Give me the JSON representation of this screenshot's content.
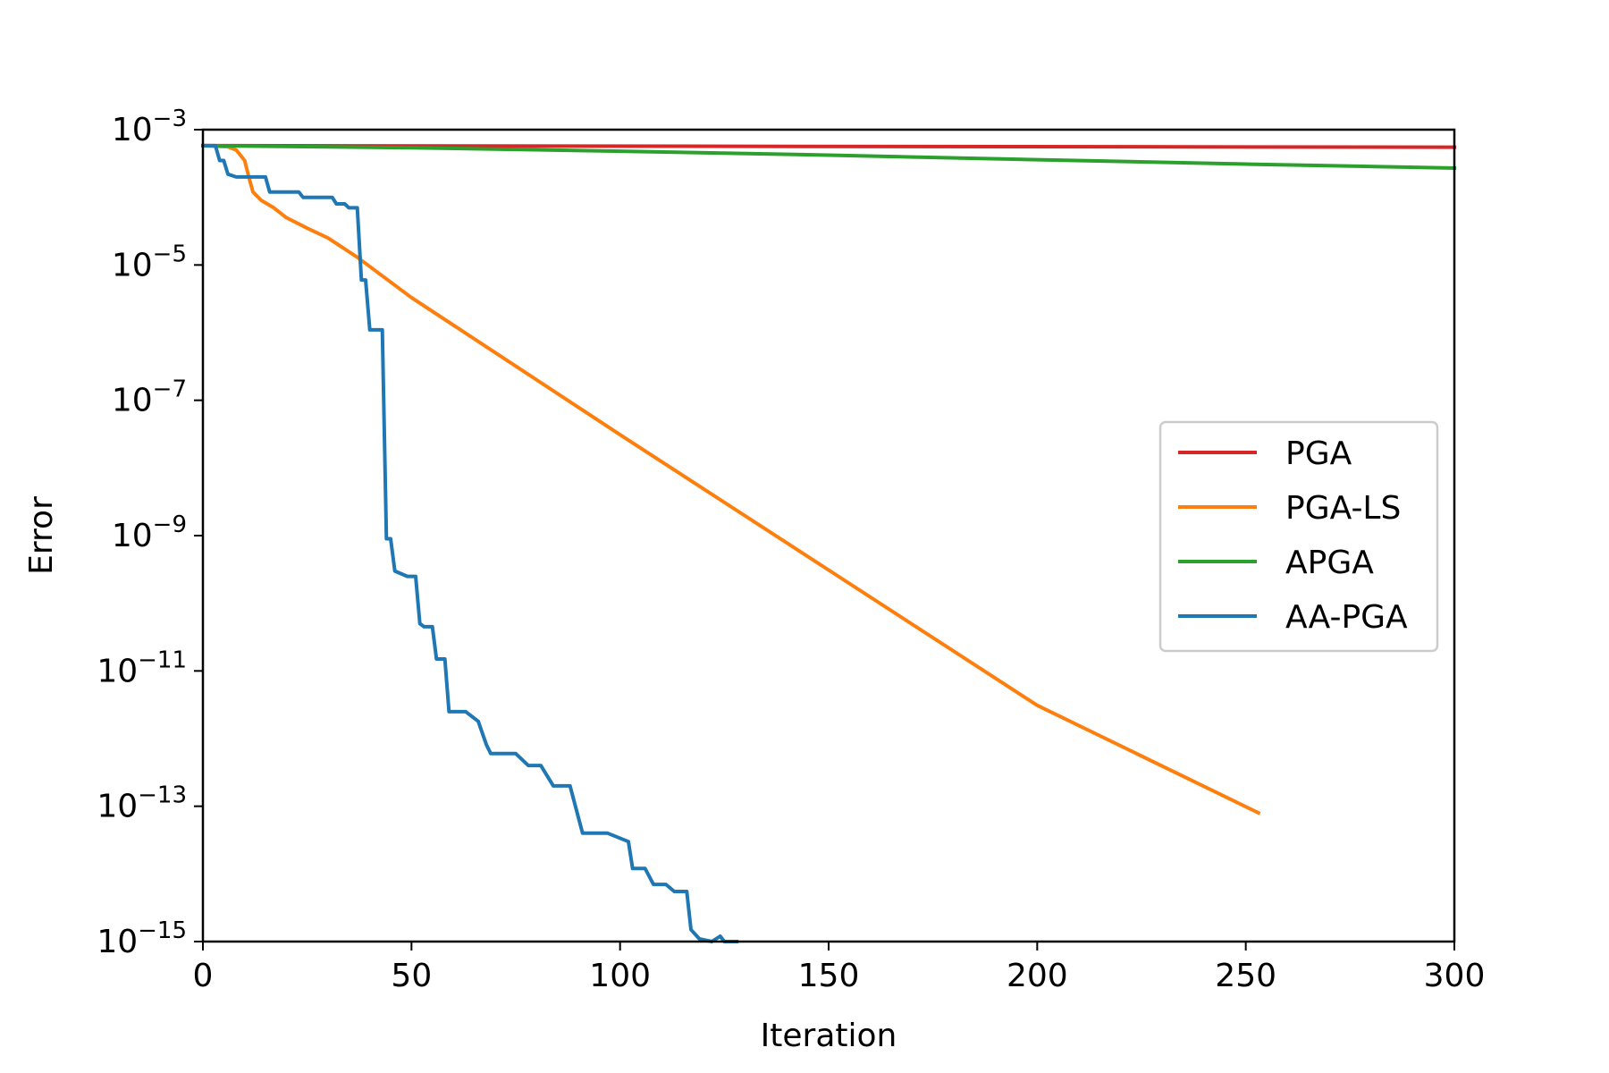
{
  "chart_data": {
    "type": "line",
    "title": "",
    "xlabel": "Iteration",
    "ylabel": "Error",
    "xlim": [
      0,
      300
    ],
    "ylim": [
      1e-15,
      0.001
    ],
    "yscale": "log",
    "grid": false,
    "legend_position": "center-right",
    "x_ticks": [
      0,
      50,
      100,
      150,
      200,
      250,
      300
    ],
    "y_ticks": [
      {
        "value": 0.001,
        "base": "10",
        "exp": "−3"
      },
      {
        "value": 1e-05,
        "base": "10",
        "exp": "−5"
      },
      {
        "value": 1e-07,
        "base": "10",
        "exp": "−7"
      },
      {
        "value": 1e-09,
        "base": "10",
        "exp": "−9"
      },
      {
        "value": 1e-11,
        "base": "10",
        "exp": "−11"
      },
      {
        "value": 1e-13,
        "base": "10",
        "exp": "−13"
      },
      {
        "value": 1e-15,
        "base": "10",
        "exp": "−15"
      }
    ],
    "series": [
      {
        "name": "PGA",
        "color": "#d62728",
        "points": [
          [
            0,
            0.00058
          ],
          [
            300,
            0.00055
          ]
        ]
      },
      {
        "name": "PGA-LS",
        "color": "#ff7f0e",
        "points": [
          [
            0,
            0.00058
          ],
          [
            6,
            0.00056
          ],
          [
            8,
            0.0005
          ],
          [
            10,
            0.00035
          ],
          [
            11,
            0.0002
          ],
          [
            12,
            0.00012
          ],
          [
            14,
            9e-05
          ],
          [
            17,
            7e-05
          ],
          [
            20,
            5e-05
          ],
          [
            25,
            3.5e-05
          ],
          [
            30,
            2.5e-05
          ],
          [
            37,
            1.3e-05
          ],
          [
            50,
            3.3e-06
          ],
          [
            100,
            3.1e-08
          ],
          [
            150,
            3.1e-10
          ],
          [
            200,
            3.1e-12
          ],
          [
            253,
            8e-14
          ]
        ]
      },
      {
        "name": "APGA",
        "color": "#2ca02c",
        "points": [
          [
            0,
            0.00058
          ],
          [
            50,
            0.00054
          ],
          [
            100,
            0.00048
          ],
          [
            150,
            0.00042
          ],
          [
            200,
            0.00036
          ],
          [
            250,
            0.00031
          ],
          [
            300,
            0.00027
          ]
        ]
      },
      {
        "name": "AA-PGA",
        "color": "#1f77b4",
        "points": [
          [
            0,
            0.00058
          ],
          [
            3,
            0.00058
          ],
          [
            4,
            0.00035
          ],
          [
            5,
            0.00035
          ],
          [
            6,
            0.00022
          ],
          [
            8,
            0.0002
          ],
          [
            15,
            0.0002
          ],
          [
            16,
            0.00012
          ],
          [
            23,
            0.00012
          ],
          [
            24,
            0.0001
          ],
          [
            31,
            0.0001
          ],
          [
            32,
            8e-05
          ],
          [
            34,
            8e-05
          ],
          [
            35,
            7e-05
          ],
          [
            37,
            7e-05
          ],
          [
            38,
            6e-06
          ],
          [
            39,
            6e-06
          ],
          [
            40,
            1.1e-06
          ],
          [
            43,
            1.1e-06
          ],
          [
            44,
            9e-10
          ],
          [
            45,
            9e-10
          ],
          [
            46,
            3e-10
          ],
          [
            49,
            2.5e-10
          ],
          [
            51,
            2.5e-10
          ],
          [
            52,
            5e-11
          ],
          [
            53,
            4.5e-11
          ],
          [
            55,
            4.5e-11
          ],
          [
            56,
            1.5e-11
          ],
          [
            58,
            1.5e-11
          ],
          [
            59,
            2.5e-12
          ],
          [
            63,
            2.5e-12
          ],
          [
            66,
            1.8e-12
          ],
          [
            68,
            8e-13
          ],
          [
            69,
            6e-13
          ],
          [
            75,
            6e-13
          ],
          [
            78,
            4e-13
          ],
          [
            81,
            4e-13
          ],
          [
            84,
            2e-13
          ],
          [
            88,
            2e-13
          ],
          [
            91,
            4e-14
          ],
          [
            97,
            4e-14
          ],
          [
            102,
            3e-14
          ],
          [
            103,
            1.2e-14
          ],
          [
            106,
            1.2e-14
          ],
          [
            108,
            7e-15
          ],
          [
            111,
            7e-15
          ],
          [
            113,
            5.5e-15
          ],
          [
            116,
            5.5e-15
          ],
          [
            117,
            1.5e-15
          ],
          [
            119,
            1.1e-15
          ],
          [
            122,
            1e-15
          ],
          [
            124,
            1.2e-15
          ],
          [
            125,
            1e-15
          ],
          [
            128,
            1e-15
          ]
        ]
      }
    ]
  }
}
